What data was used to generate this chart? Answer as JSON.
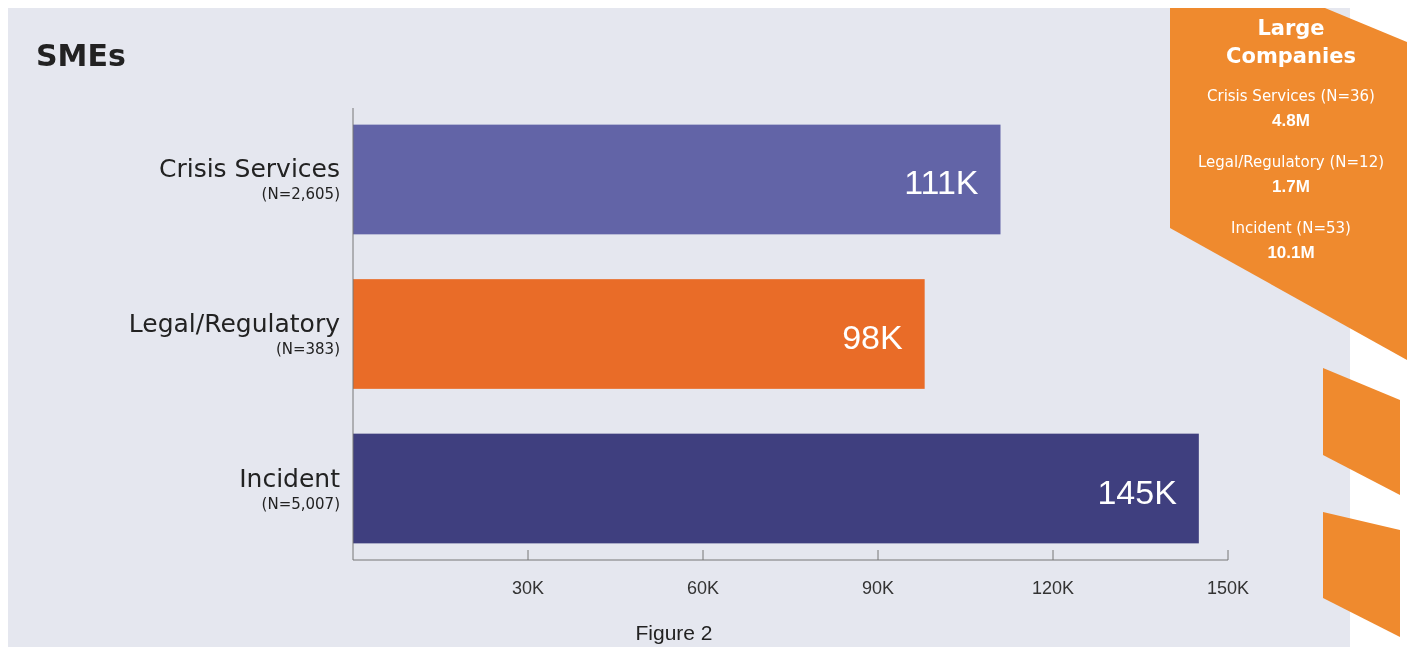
{
  "chart_data": {
    "type": "bar",
    "orientation": "horizontal",
    "title": "SMEs",
    "categories": [
      "Crisis Services\n(N=2,605)",
      "Legal/Regulatory\n(N=383)",
      "Incident\n(N=5,007)"
    ],
    "values": [
      111000,
      98000,
      145000
    ],
    "colors": [
      "#6264a7",
      "#e96c28",
      "#3f3f7f"
    ],
    "value_labels": [
      "111K",
      "98K",
      "145K"
    ],
    "xlim": [
      0,
      150000
    ],
    "xticks": [
      {
        "value": 30000,
        "label": "30K"
      },
      {
        "value": 60000,
        "label": "60K"
      },
      {
        "value": 90000,
        "label": "90K"
      },
      {
        "value": 120000,
        "label": "120K"
      },
      {
        "value": 150000,
        "label": "150K"
      }
    ],
    "annotations": [
      "Large\nCompanies",
      "Crisis Services (N=36)",
      "4.8M",
      "Legal/Regulatory (N=12)",
      "1.7M",
      "Incident (N=53)",
      "10.1M",
      "Figure 2"
    ]
  }
}
